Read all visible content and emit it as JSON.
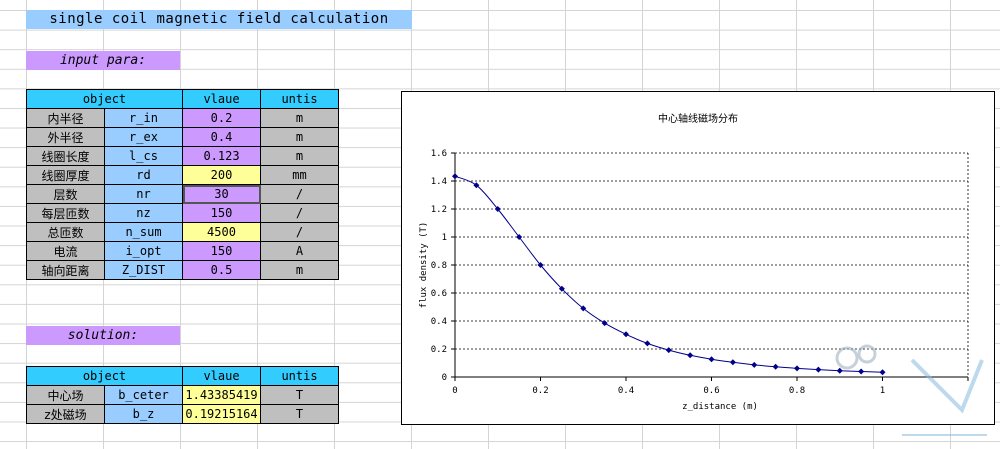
{
  "title": "single coil magnetic field calculation",
  "input_section": "input para:",
  "solution_section": "solution:",
  "headers": {
    "object": "object",
    "value": "vlaue",
    "units": "untis"
  },
  "inputs": [
    {
      "name_cn": "内半径",
      "symbol": "r_in",
      "value": "0.2",
      "unit": "m",
      "color": "purple"
    },
    {
      "name_cn": "外半径",
      "symbol": "r_ex",
      "value": "0.4",
      "unit": "m",
      "color": "purple"
    },
    {
      "name_cn": "线圈长度",
      "symbol": "l_cs",
      "value": "0.123",
      "unit": "m",
      "color": "purple"
    },
    {
      "name_cn": "线圈厚度",
      "symbol": "rd",
      "value": "200",
      "unit": "mm",
      "color": "yellow"
    },
    {
      "name_cn": "层数",
      "symbol": "nr",
      "value": "30",
      "unit": "/",
      "color": "purple"
    },
    {
      "name_cn": "每层匝数",
      "symbol": "nz",
      "value": "150",
      "unit": "/",
      "color": "purple"
    },
    {
      "name_cn": "总匝数",
      "symbol": "n_sum",
      "value": "4500",
      "unit": "/",
      "color": "yellow"
    },
    {
      "name_cn": "电流",
      "symbol": "i_opt",
      "value": "150",
      "unit": "A",
      "color": "purple"
    },
    {
      "name_cn": "轴向距离",
      "symbol": "Z_DIST",
      "value": "0.5",
      "unit": "m",
      "color": "purple"
    }
  ],
  "outputs": [
    {
      "name_cn": "中心场",
      "symbol": "b_ceter",
      "value": "1.43385419",
      "unit": "T"
    },
    {
      "name_cn": "z处磁场",
      "symbol": "b_z",
      "value": "0.19215164",
      "unit": "T"
    }
  ],
  "colors": {
    "purple": "#cc99ff",
    "yellow": "#ffff99",
    "header": "#33ccff",
    "blue": "#99ccff",
    "gray": "#bfbfbf",
    "line": "#00008b"
  },
  "chart_data": {
    "type": "line",
    "title": "中心轴线磁场分布",
    "xlabel": "z_distance (m)",
    "ylabel": "flux density (T)",
    "xlim": [
      0,
      1.2
    ],
    "ylim": [
      0,
      1.6
    ],
    "x_ticks": [
      "0",
      "0.2",
      "0.4",
      "0.6",
      "0.8",
      "1"
    ],
    "y_ticks": [
      "0",
      "0.2",
      "0.4",
      "0.6",
      "0.8",
      "1",
      "1.2",
      "1.4",
      "1.6"
    ],
    "grid": "horizontal dotted",
    "series": [
      {
        "x": [
          0,
          0.05,
          0.1,
          0.15,
          0.2,
          0.25,
          0.3,
          0.35,
          0.4,
          0.45,
          0.5,
          0.55,
          0.6,
          0.65,
          0.7,
          0.75,
          0.8,
          0.85,
          0.9,
          0.95,
          1.0
        ],
        "y": [
          1.434,
          1.37,
          1.2,
          1.0,
          0.8,
          0.63,
          0.49,
          0.385,
          0.305,
          0.24,
          0.192,
          0.155,
          0.127,
          0.105,
          0.087,
          0.073,
          0.062,
          0.053,
          0.045,
          0.039,
          0.034
        ]
      }
    ]
  }
}
